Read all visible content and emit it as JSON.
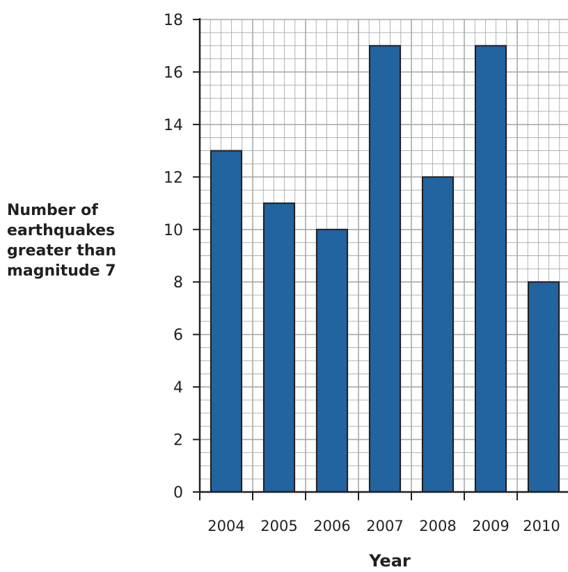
{
  "chart_data": {
    "type": "bar",
    "title": "",
    "xlabel": "Year",
    "ylabel": "Number of\nearthquakes\ngreater than\nmagnitude 7",
    "categories": [
      "2004",
      "2005",
      "2006",
      "2007",
      "2008",
      "2009",
      "2010"
    ],
    "values": [
      13,
      11,
      10,
      17,
      12,
      17,
      8
    ],
    "ylim": [
      0,
      18
    ],
    "yticks": [
      "0",
      "2",
      "4",
      "6",
      "8",
      "10",
      "12",
      "14",
      "16",
      "18"
    ],
    "grid": true,
    "bar_color": "#21649f",
    "grid_color": "#a7a9ac",
    "axis_color": "#231f20"
  }
}
